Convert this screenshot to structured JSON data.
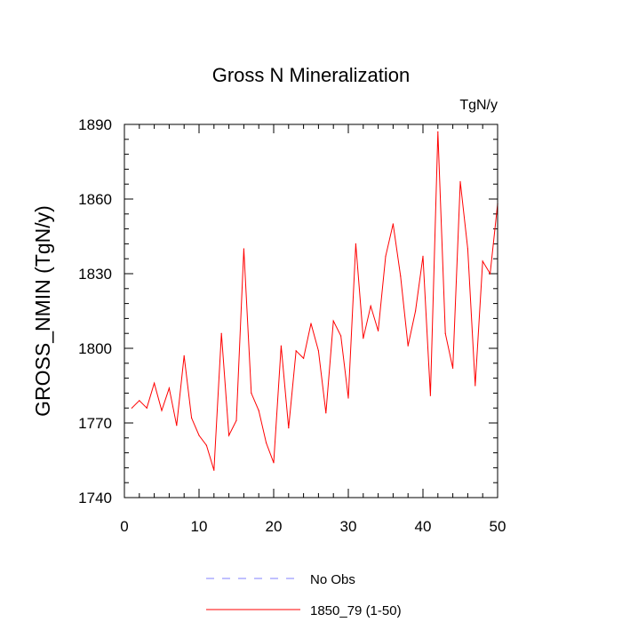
{
  "chart_data": {
    "type": "line",
    "title": "Gross N Mineralization",
    "units_label": "TgN/y",
    "xlabel": "",
    "ylabel": "GROSS_NMIN  (TgN/y)",
    "xlim": [
      0,
      50
    ],
    "ylim": [
      1740,
      1890
    ],
    "x_ticks": [
      0,
      10,
      20,
      30,
      40,
      50
    ],
    "y_ticks": [
      1740,
      1770,
      1800,
      1830,
      1860,
      1890
    ],
    "series": [
      {
        "name": "1850_79 (1-50)",
        "color": "#ff0000",
        "dash": "solid",
        "x": [
          1,
          2,
          3,
          4,
          5,
          6,
          7,
          8,
          9,
          10,
          11,
          12,
          13,
          14,
          15,
          16,
          17,
          18,
          19,
          20,
          21,
          22,
          23,
          24,
          25,
          26,
          27,
          28,
          29,
          30,
          31,
          32,
          33,
          34,
          35,
          36,
          37,
          38,
          39,
          40,
          41,
          42,
          43,
          44,
          45,
          46,
          47,
          48,
          49,
          50
        ],
        "values": [
          1776,
          1779,
          1776,
          1786,
          1775,
          1784,
          1769,
          1797,
          1772,
          1765,
          1761,
          1751,
          1806,
          1765,
          1771,
          1840,
          1782,
          1775,
          1762,
          1754,
          1801,
          1768,
          1799,
          1796,
          1810,
          1799,
          1774,
          1811,
          1805,
          1780,
          1842,
          1804,
          1817,
          1807,
          1837,
          1850,
          1829,
          1801,
          1815,
          1837,
          1781,
          1887,
          1806,
          1792,
          1867,
          1840,
          1785,
          1835,
          1830,
          1858
        ]
      }
    ],
    "legend": {
      "placement": "bottom",
      "entries": [
        {
          "label": "No Obs",
          "color": "#8080ff",
          "dash": "dashed"
        },
        {
          "label": "1850_79 (1-50)",
          "color": "#ff0000",
          "dash": "solid"
        }
      ]
    }
  }
}
